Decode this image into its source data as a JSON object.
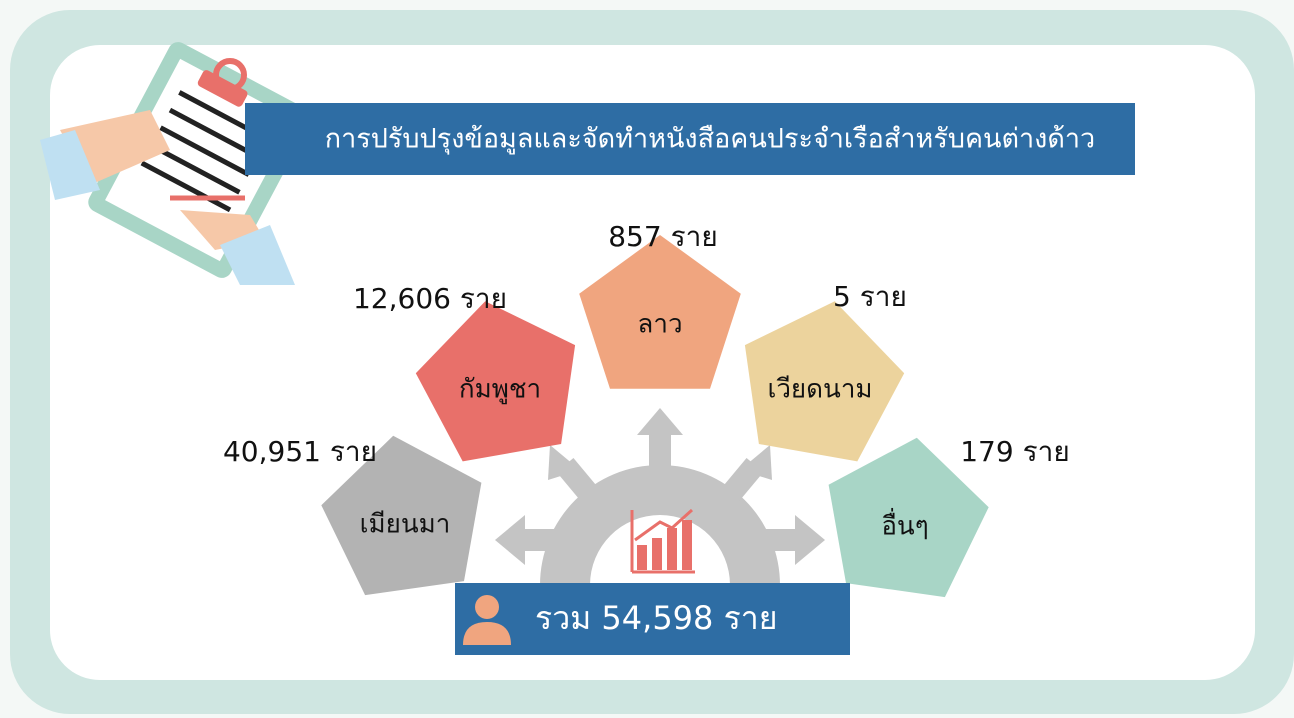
{
  "header": {
    "title": "การปรับปรุงข้อมูลและจัดทำหนังสือคนประจำเรือสำหรับคนต่างด้าว"
  },
  "items": [
    {
      "label": "เมียนมา",
      "count": "40,951 ราย"
    },
    {
      "label": "กัมพูชา",
      "count": "12,606 ราย"
    },
    {
      "label": "ลาว",
      "count": "857 ราย"
    },
    {
      "label": "เวียดนาม",
      "count": "5 ราย"
    },
    {
      "label": "อื่นๆ",
      "count": "179 ราย"
    }
  ],
  "total": "รวม 54,598 ราย"
}
